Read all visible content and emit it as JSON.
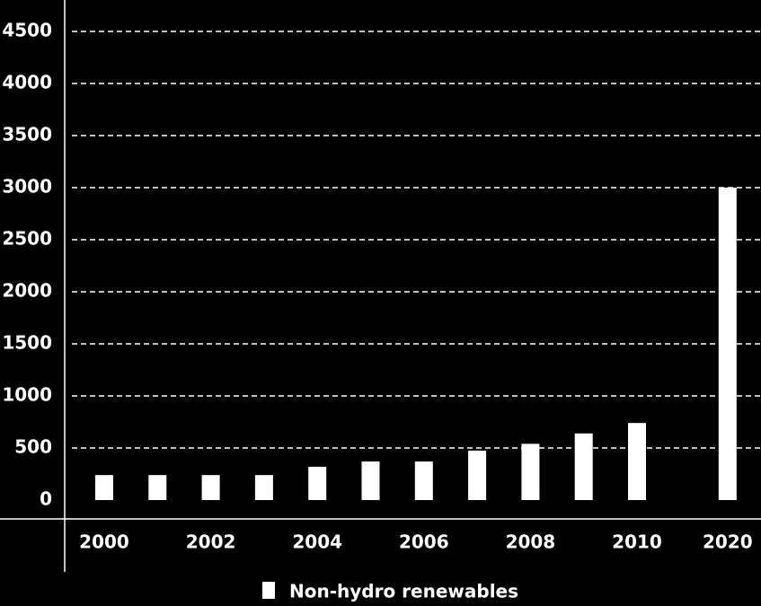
{
  "chart_data": {
    "type": "bar",
    "categories": [
      "2000",
      null,
      "2002",
      null,
      "2004",
      null,
      "2006",
      null,
      "2008",
      null,
      "2010",
      "2020"
    ],
    "series": [
      {
        "name": "Non-hydro renewables",
        "color": "#ffffff",
        "values": [
          240,
          240,
          240,
          240,
          320,
          370,
          370,
          475,
          540,
          640,
          740,
          3000
        ]
      }
    ],
    "ylim": [
      0,
      4500
    ],
    "yticks": [
      0,
      500,
      1000,
      1500,
      2000,
      2500,
      3000,
      3500,
      4000,
      4500
    ],
    "grid": true,
    "legend": "bottom"
  }
}
